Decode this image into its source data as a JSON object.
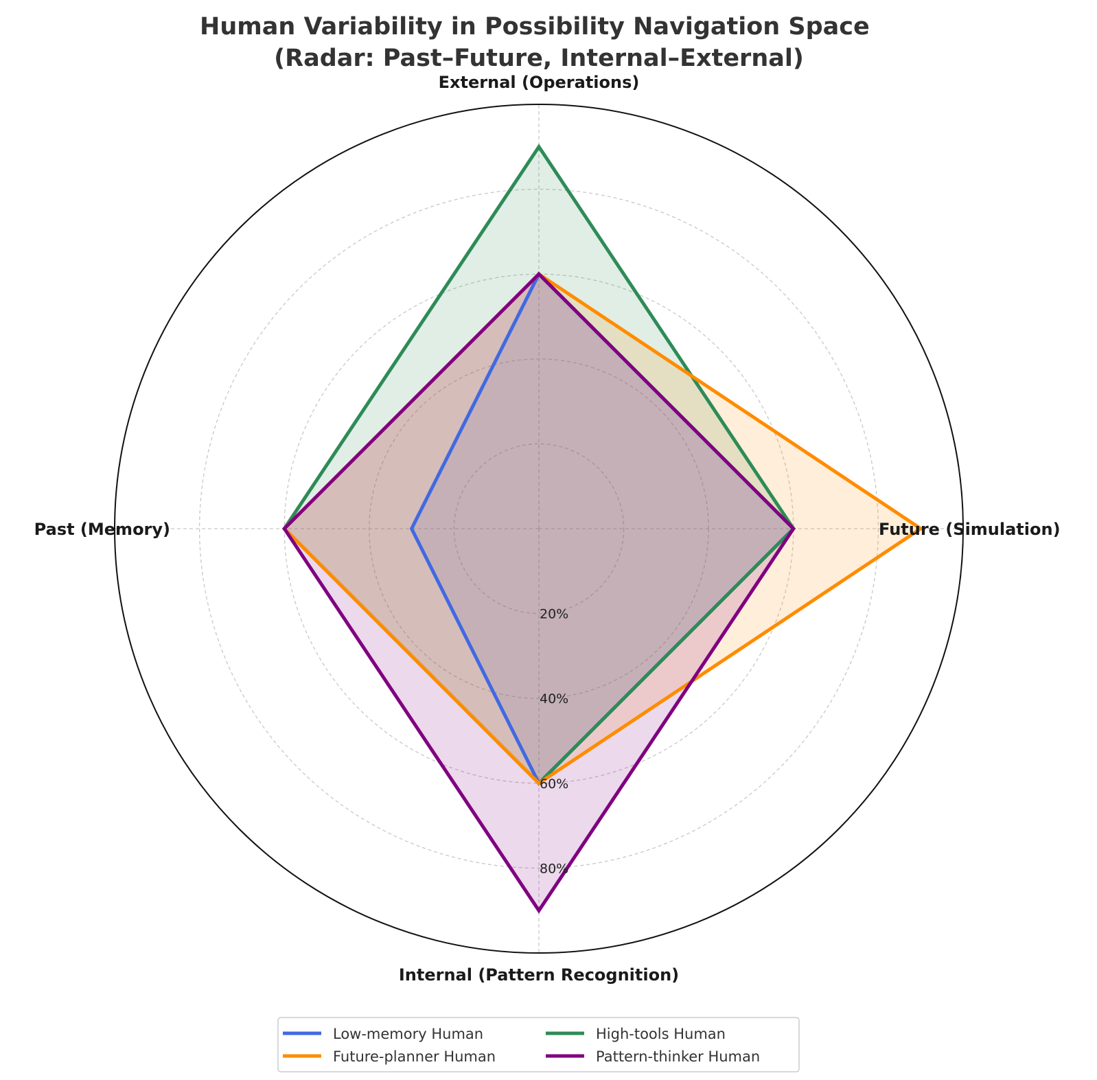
{
  "chart_data": {
    "type": "radar",
    "title": "Human Variability in Possibility Navigation Space\n(Radar: Past–Future, Internal–External)",
    "axes": [
      "Future (Simulation)",
      "External (Operations)",
      "Past (Memory)",
      "Internal (Pattern Recognition)"
    ],
    "rlim": [
      0,
      100
    ],
    "tick_values": [
      20,
      40,
      60,
      80
    ],
    "tick_labels": [
      "20%",
      "40%",
      "60%",
      "80%"
    ],
    "grid": true,
    "legend_position": "bottom-center",
    "series": [
      {
        "name": "Low-memory Human",
        "color": "#4169e1",
        "values": [
          60,
          60,
          30,
          60
        ]
      },
      {
        "name": "High-tools Human",
        "color": "#2e8b57",
        "values": [
          60,
          90,
          60,
          60
        ]
      },
      {
        "name": "Future-planner Human",
        "color": "#ff8c00",
        "values": [
          90,
          60,
          60,
          60
        ]
      },
      {
        "name": "Pattern-thinker Human",
        "color": "#800080",
        "values": [
          60,
          60,
          60,
          90
        ]
      }
    ]
  }
}
